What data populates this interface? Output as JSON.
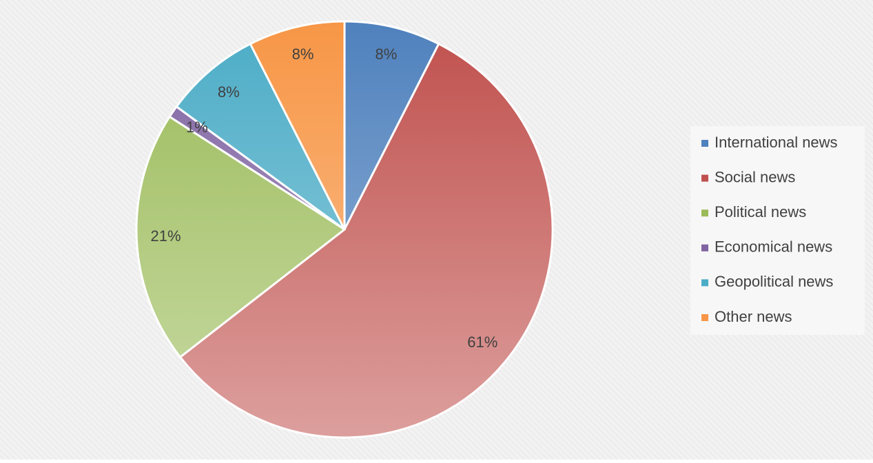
{
  "chart_data": {
    "type": "pie",
    "categories": [
      "International news",
      "Social news",
      "Political news",
      "Economical news",
      "Geopolitical news",
      "Other news"
    ],
    "values": [
      8,
      61,
      21,
      1,
      8,
      8
    ],
    "value_labels": [
      "8%",
      "61%",
      "21%",
      "1%",
      "8%",
      "8%"
    ],
    "colors": [
      "#4f81bd",
      "#c0504d",
      "#9bbb59",
      "#8064a2",
      "#4bacc6",
      "#f79646"
    ],
    "legend": "right"
  }
}
